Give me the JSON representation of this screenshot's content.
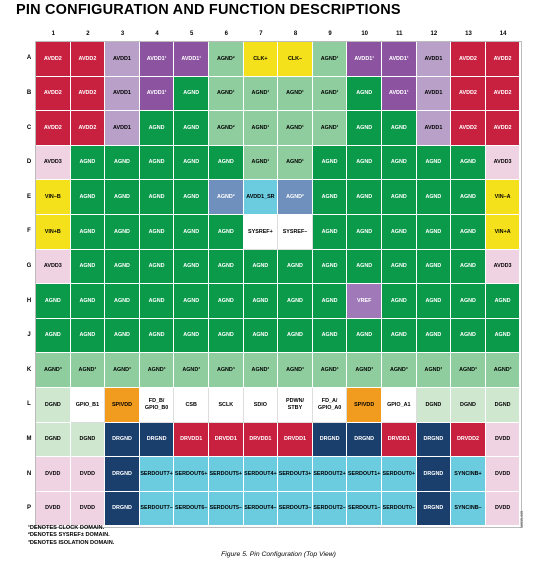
{
  "title": "PIN CONFIGURATION AND FUNCTION DESCRIPTIONS",
  "columns": [
    "1",
    "2",
    "3",
    "4",
    "5",
    "6",
    "7",
    "8",
    "9",
    "10",
    "11",
    "12",
    "13",
    "14"
  ],
  "rows": [
    {
      "label": "A",
      "cells": [
        {
          "t": "AVDD2",
          "c": "r"
        },
        {
          "t": "AVDD2",
          "c": "r"
        },
        {
          "t": "AVDD1",
          "c": "lp"
        },
        {
          "t": "AVDD1¹",
          "c": "p"
        },
        {
          "t": "AVDD1¹",
          "c": "p"
        },
        {
          "t": "AGND²",
          "c": "lg"
        },
        {
          "t": "CLK+",
          "c": "y"
        },
        {
          "t": "CLK–",
          "c": "y"
        },
        {
          "t": "AGND¹",
          "c": "lg"
        },
        {
          "t": "AVDD1¹",
          "c": "p"
        },
        {
          "t": "AVDD1¹",
          "c": "p"
        },
        {
          "t": "AVDD1",
          "c": "lp"
        },
        {
          "t": "AVDD2",
          "c": "r"
        },
        {
          "t": "AVDD2",
          "c": "r"
        }
      ]
    },
    {
      "label": "B",
      "cells": [
        {
          "t": "AVDD2",
          "c": "r"
        },
        {
          "t": "AVDD2",
          "c": "r"
        },
        {
          "t": "AVDD1",
          "c": "lp"
        },
        {
          "t": "AVDD1¹",
          "c": "p"
        },
        {
          "t": "AGND",
          "c": "g"
        },
        {
          "t": "AGND¹",
          "c": "lg"
        },
        {
          "t": "AGND¹",
          "c": "lg"
        },
        {
          "t": "AGND¹",
          "c": "lg"
        },
        {
          "t": "AGND¹",
          "c": "lg"
        },
        {
          "t": "AGND",
          "c": "g"
        },
        {
          "t": "AVDD1¹",
          "c": "p"
        },
        {
          "t": "AVDD1",
          "c": "lp"
        },
        {
          "t": "AVDD2",
          "c": "r"
        },
        {
          "t": "AVDD2",
          "c": "r"
        }
      ]
    },
    {
      "label": "C",
      "cells": [
        {
          "t": "AVDD2",
          "c": "r"
        },
        {
          "t": "AVDD2",
          "c": "r"
        },
        {
          "t": "AVDD1",
          "c": "lp"
        },
        {
          "t": "AGND",
          "c": "g"
        },
        {
          "t": "AGND",
          "c": "g"
        },
        {
          "t": "AGND²",
          "c": "lg"
        },
        {
          "t": "AGND¹",
          "c": "lg"
        },
        {
          "t": "AGND¹",
          "c": "lg"
        },
        {
          "t": "AGND¹",
          "c": "lg"
        },
        {
          "t": "AGND",
          "c": "g"
        },
        {
          "t": "AGND",
          "c": "g"
        },
        {
          "t": "AVDD1",
          "c": "lp"
        },
        {
          "t": "AVDD2",
          "c": "r"
        },
        {
          "t": "AVDD2",
          "c": "r"
        }
      ]
    },
    {
      "label": "D",
      "cells": [
        {
          "t": "AVDD3",
          "c": "pk"
        },
        {
          "t": "AGND",
          "c": "g"
        },
        {
          "t": "AGND",
          "c": "g"
        },
        {
          "t": "AGND",
          "c": "g"
        },
        {
          "t": "AGND",
          "c": "g"
        },
        {
          "t": "AGND",
          "c": "g"
        },
        {
          "t": "AGND¹",
          "c": "lg"
        },
        {
          "t": "AGND¹",
          "c": "lg"
        },
        {
          "t": "AGND",
          "c": "g"
        },
        {
          "t": "AGND",
          "c": "g"
        },
        {
          "t": "AGND",
          "c": "g"
        },
        {
          "t": "AGND",
          "c": "g"
        },
        {
          "t": "AGND",
          "c": "g"
        },
        {
          "t": "AVDD3",
          "c": "pk"
        }
      ]
    },
    {
      "label": "E",
      "cells": [
        {
          "t": "VIN–B",
          "c": "y"
        },
        {
          "t": "AGND",
          "c": "g"
        },
        {
          "t": "AGND",
          "c": "g"
        },
        {
          "t": "AGND",
          "c": "g"
        },
        {
          "t": "AGND",
          "c": "g"
        },
        {
          "t": "AGND²",
          "c": "sb"
        },
        {
          "t": "AVDD1_SR",
          "c": "cy"
        },
        {
          "t": "AGND²",
          "c": "sb"
        },
        {
          "t": "AGND",
          "c": "g"
        },
        {
          "t": "AGND",
          "c": "g"
        },
        {
          "t": "AGND",
          "c": "g"
        },
        {
          "t": "AGND",
          "c": "g"
        },
        {
          "t": "AGND",
          "c": "g"
        },
        {
          "t": "VIN–A",
          "c": "y"
        }
      ]
    },
    {
      "label": "F",
      "cells": [
        {
          "t": "VIN+B",
          "c": "y"
        },
        {
          "t": "AGND",
          "c": "g"
        },
        {
          "t": "AGND",
          "c": "g"
        },
        {
          "t": "AGND",
          "c": "g"
        },
        {
          "t": "AGND",
          "c": "g"
        },
        {
          "t": "AGND",
          "c": "g"
        },
        {
          "t": "SYSREF+",
          "c": "w"
        },
        {
          "t": "SYSREF–",
          "c": "w"
        },
        {
          "t": "AGND",
          "c": "g"
        },
        {
          "t": "AGND",
          "c": "g"
        },
        {
          "t": "AGND",
          "c": "g"
        },
        {
          "t": "AGND",
          "c": "g"
        },
        {
          "t": "AGND",
          "c": "g"
        },
        {
          "t": "VIN+A",
          "c": "y"
        }
      ]
    },
    {
      "label": "G",
      "cells": [
        {
          "t": "AVDD3",
          "c": "pk"
        },
        {
          "t": "AGND",
          "c": "g"
        },
        {
          "t": "AGND",
          "c": "g"
        },
        {
          "t": "AGND",
          "c": "g"
        },
        {
          "t": "AGND",
          "c": "g"
        },
        {
          "t": "AGND",
          "c": "g"
        },
        {
          "t": "AGND",
          "c": "g"
        },
        {
          "t": "AGND",
          "c": "g"
        },
        {
          "t": "AGND",
          "c": "g"
        },
        {
          "t": "AGND",
          "c": "g"
        },
        {
          "t": "AGND",
          "c": "g"
        },
        {
          "t": "AGND",
          "c": "g"
        },
        {
          "t": "AGND",
          "c": "g"
        },
        {
          "t": "AVDD3",
          "c": "pk"
        }
      ]
    },
    {
      "label": "H",
      "cells": [
        {
          "t": "AGND",
          "c": "g"
        },
        {
          "t": "AGND",
          "c": "g"
        },
        {
          "t": "AGND",
          "c": "g"
        },
        {
          "t": "AGND",
          "c": "g"
        },
        {
          "t": "AGND",
          "c": "g"
        },
        {
          "t": "AGND",
          "c": "g"
        },
        {
          "t": "AGND",
          "c": "g"
        },
        {
          "t": "AGND",
          "c": "g"
        },
        {
          "t": "AGND",
          "c": "g"
        },
        {
          "t": "VREF",
          "c": "vp"
        },
        {
          "t": "AGND",
          "c": "g"
        },
        {
          "t": "AGND",
          "c": "g"
        },
        {
          "t": "AGND",
          "c": "g"
        },
        {
          "t": "AGND",
          "c": "g"
        }
      ]
    },
    {
      "label": "J",
      "cells": [
        {
          "t": "AGND",
          "c": "g"
        },
        {
          "t": "AGND",
          "c": "g"
        },
        {
          "t": "AGND",
          "c": "g"
        },
        {
          "t": "AGND",
          "c": "g"
        },
        {
          "t": "AGND",
          "c": "g"
        },
        {
          "t": "AGND",
          "c": "g"
        },
        {
          "t": "AGND",
          "c": "g"
        },
        {
          "t": "AGND",
          "c": "g"
        },
        {
          "t": "AGND",
          "c": "g"
        },
        {
          "t": "AGND",
          "c": "g"
        },
        {
          "t": "AGND",
          "c": "g"
        },
        {
          "t": "AGND",
          "c": "g"
        },
        {
          "t": "AGND",
          "c": "g"
        },
        {
          "t": "AGND",
          "c": "g"
        }
      ]
    },
    {
      "label": "K",
      "cells": [
        {
          "t": "AGND³",
          "c": "lg"
        },
        {
          "t": "AGND³",
          "c": "lg"
        },
        {
          "t": "AGND³",
          "c": "lg"
        },
        {
          "t": "AGND³",
          "c": "lg"
        },
        {
          "t": "AGND³",
          "c": "lg"
        },
        {
          "t": "AGND³",
          "c": "lg"
        },
        {
          "t": "AGND³",
          "c": "lg"
        },
        {
          "t": "AGND³",
          "c": "lg"
        },
        {
          "t": "AGND³",
          "c": "lg"
        },
        {
          "t": "AGND³",
          "c": "lg"
        },
        {
          "t": "AGND³",
          "c": "lg"
        },
        {
          "t": "AGND³",
          "c": "lg"
        },
        {
          "t": "AGND³",
          "c": "lg"
        },
        {
          "t": "AGND³",
          "c": "lg"
        }
      ]
    },
    {
      "label": "L",
      "cells": [
        {
          "t": "DGND",
          "c": "pg"
        },
        {
          "t": "GPIO_B1",
          "c": "w"
        },
        {
          "t": "SPIVDD",
          "c": "o"
        },
        {
          "t": "FD_B/\nGPIO_B0",
          "c": "w"
        },
        {
          "t": "CSB",
          "c": "w"
        },
        {
          "t": "SCLK",
          "c": "w"
        },
        {
          "t": "SDIO",
          "c": "w"
        },
        {
          "t": "PDWN/\nSTBY",
          "c": "w"
        },
        {
          "t": "FD_A/\nGPIO_A0",
          "c": "w"
        },
        {
          "t": "SPIVDD",
          "c": "o"
        },
        {
          "t": "GPIO_A1",
          "c": "w"
        },
        {
          "t": "DGND",
          "c": "pg"
        },
        {
          "t": "DGND",
          "c": "pg"
        },
        {
          "t": "DGND",
          "c": "pg"
        }
      ]
    },
    {
      "label": "M",
      "cells": [
        {
          "t": "DGND",
          "c": "pg"
        },
        {
          "t": "DGND",
          "c": "pg"
        },
        {
          "t": "DRGND",
          "c": "nv"
        },
        {
          "t": "DRGND",
          "c": "nv"
        },
        {
          "t": "DRVDD1",
          "c": "r"
        },
        {
          "t": "DRVDD1",
          "c": "r"
        },
        {
          "t": "DRVDD1",
          "c": "r"
        },
        {
          "t": "DRVDD1",
          "c": "r"
        },
        {
          "t": "DRGND",
          "c": "nv"
        },
        {
          "t": "DRGND",
          "c": "nv"
        },
        {
          "t": "DRVDD1",
          "c": "r"
        },
        {
          "t": "DRGND",
          "c": "nv"
        },
        {
          "t": "DRVDD2",
          "c": "r"
        },
        {
          "t": "DVDD",
          "c": "pk"
        }
      ]
    },
    {
      "label": "N",
      "cells": [
        {
          "t": "DVDD",
          "c": "pk"
        },
        {
          "t": "DVDD",
          "c": "pk"
        },
        {
          "t": "DRGND",
          "c": "nv"
        },
        {
          "t": "SERDOUT7+",
          "c": "cy"
        },
        {
          "t": "SERDOUT6+",
          "c": "cy"
        },
        {
          "t": "SERDOUT5+",
          "c": "cy"
        },
        {
          "t": "SERDOUT4+",
          "c": "cy"
        },
        {
          "t": "SERDOUT3+",
          "c": "cy"
        },
        {
          "t": "SERDOUT2+",
          "c": "cy"
        },
        {
          "t": "SERDOUT1+",
          "c": "cy"
        },
        {
          "t": "SERDOUT0+",
          "c": "cy"
        },
        {
          "t": "DRGND",
          "c": "nv"
        },
        {
          "t": "SYNCINB+",
          "c": "cy"
        },
        {
          "t": "DVDD",
          "c": "pk"
        }
      ]
    },
    {
      "label": "P",
      "cells": [
        {
          "t": "DVDD",
          "c": "pk"
        },
        {
          "t": "DVDD",
          "c": "pk"
        },
        {
          "t": "DRGND",
          "c": "nv"
        },
        {
          "t": "SERDOUT7–",
          "c": "cy"
        },
        {
          "t": "SERDOUT6–",
          "c": "cy"
        },
        {
          "t": "SERDOUT5–",
          "c": "cy"
        },
        {
          "t": "SERDOUT4–",
          "c": "cy"
        },
        {
          "t": "SERDOUT3–",
          "c": "cy"
        },
        {
          "t": "SERDOUT2–",
          "c": "cy"
        },
        {
          "t": "SERDOUT1–",
          "c": "cy"
        },
        {
          "t": "SERDOUT0–",
          "c": "cy"
        },
        {
          "t": "DRGND",
          "c": "nv"
        },
        {
          "t": "SYNCINB–",
          "c": "cy"
        },
        {
          "t": "DVDD",
          "c": "pk"
        }
      ]
    }
  ],
  "colors": {
    "r": "#c8203f",
    "lp": "#b9a0c9",
    "p": "#8b53a0",
    "lg": "#8fcd9f",
    "g": "#0a9a4a",
    "y": "#f4e11c",
    "pk": "#f0d3e3",
    "sb": "#6f8fbc",
    "cy": "#6bcbdf",
    "w": "#ffffff",
    "vp": "#a07ab8",
    "pg": "#cfe7cf",
    "o": "#f29c1f",
    "nv": "#1b3f6d"
  },
  "dark_text": [
    "lp",
    "lg",
    "y",
    "pk",
    "cy",
    "w",
    "pg",
    "o"
  ],
  "notes": [
    "¹DENOTES CLOCK DOMAIN.",
    "²DENOTES SYSREF± DOMAIN.",
    "³DENOTES ISOLATION DOMAIN."
  ],
  "caption": "Figure 5. Pin Configuration (Top View)",
  "side_id": "16535-005"
}
